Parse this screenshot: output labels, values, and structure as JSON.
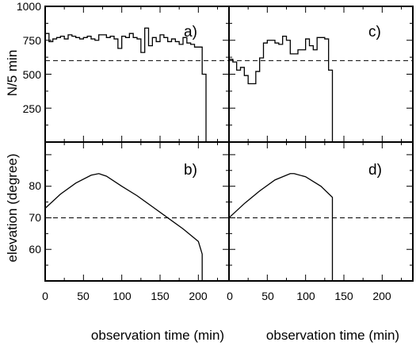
{
  "chart_data": [
    {
      "panel": "a)",
      "type": "line",
      "step": true,
      "ylabel": "N/5 min",
      "xlim": [
        0,
        240
      ],
      "ylim": [
        0,
        1000
      ],
      "yticks": [
        250,
        500,
        750,
        1000
      ],
      "xticks": [
        0,
        50,
        100,
        150,
        200
      ],
      "reference_y": 600,
      "bins": [
        0,
        5,
        10,
        15,
        20,
        25,
        30,
        35,
        40,
        45,
        50,
        55,
        60,
        65,
        70,
        75,
        80,
        85,
        90,
        95,
        100,
        105,
        110,
        115,
        120,
        125,
        130,
        135,
        140,
        145,
        150,
        155,
        160,
        165,
        170,
        175,
        180,
        185,
        190,
        195,
        200,
        205,
        210
      ],
      "values": [
        800,
        740,
        760,
        770,
        780,
        760,
        790,
        780,
        770,
        760,
        770,
        780,
        760,
        750,
        790,
        790,
        770,
        780,
        760,
        690,
        780,
        770,
        800,
        770,
        760,
        660,
        840,
        710,
        770,
        740,
        790,
        770,
        740,
        760,
        740,
        720,
        770,
        730,
        720,
        700,
        700,
        500,
        0
      ]
    },
    {
      "panel": "b)",
      "type": "line",
      "ylabel": "elevation (degree)",
      "xlabel": "observation time (min)",
      "xlim": [
        0,
        240
      ],
      "ylim": [
        50,
        94
      ],
      "yticks": [
        60,
        70,
        80
      ],
      "xticks": [
        0,
        50,
        100,
        150,
        200
      ],
      "reference_y": 70,
      "x": [
        0,
        20,
        40,
        60,
        70,
        80,
        100,
        120,
        140,
        160,
        180,
        200,
        205,
        205
      ],
      "y": [
        73,
        77.5,
        81,
        83.5,
        84,
        83.2,
        80,
        77,
        73.5,
        70,
        66.5,
        62.5,
        58.5,
        50
      ]
    },
    {
      "panel": "c)",
      "type": "line",
      "step": true,
      "xlim": [
        0,
        240
      ],
      "ylim": [
        0,
        1000
      ],
      "yticks": [
        250,
        500,
        750,
        1000
      ],
      "xticks": [
        0,
        50,
        100,
        150,
        200
      ],
      "reference_y": 600,
      "bins": [
        0,
        5,
        10,
        15,
        20,
        25,
        30,
        35,
        40,
        45,
        50,
        55,
        60,
        65,
        70,
        75,
        80,
        85,
        90,
        95,
        100,
        105,
        110,
        115,
        120,
        125,
        130,
        135
      ],
      "values": [
        610,
        590,
        530,
        550,
        490,
        430,
        430,
        520,
        620,
        730,
        750,
        750,
        730,
        720,
        780,
        750,
        650,
        650,
        680,
        680,
        760,
        710,
        680,
        770,
        770,
        760,
        530,
        0
      ]
    },
    {
      "panel": "d)",
      "type": "line",
      "xlabel": "observation time (min)",
      "xlim": [
        0,
        240
      ],
      "ylim": [
        50,
        94
      ],
      "yticks": [
        60,
        70,
        80
      ],
      "xticks": [
        0,
        50,
        100,
        150,
        200
      ],
      "reference_y": 70,
      "x": [
        0,
        20,
        40,
        60,
        80,
        85,
        100,
        120,
        135,
        135
      ],
      "y": [
        70,
        74.5,
        78.5,
        82,
        84,
        84,
        83,
        80,
        76.5,
        50
      ]
    }
  ],
  "labels": {
    "panel_a": "a)",
    "panel_b": "b)",
    "panel_c": "c)",
    "panel_d": "d)",
    "ylabel_top": "N/5 min",
    "ylabel_bottom": "elevation (degree)",
    "xlabel_left": "observation time (min)",
    "xlabel_right": "observation time (min)",
    "top_yticks": [
      "250",
      "500",
      "750",
      "1000"
    ],
    "bottom_yticks": [
      "60",
      "70",
      "80"
    ],
    "xticks": [
      "0",
      "50",
      "100",
      "150",
      "200"
    ]
  }
}
